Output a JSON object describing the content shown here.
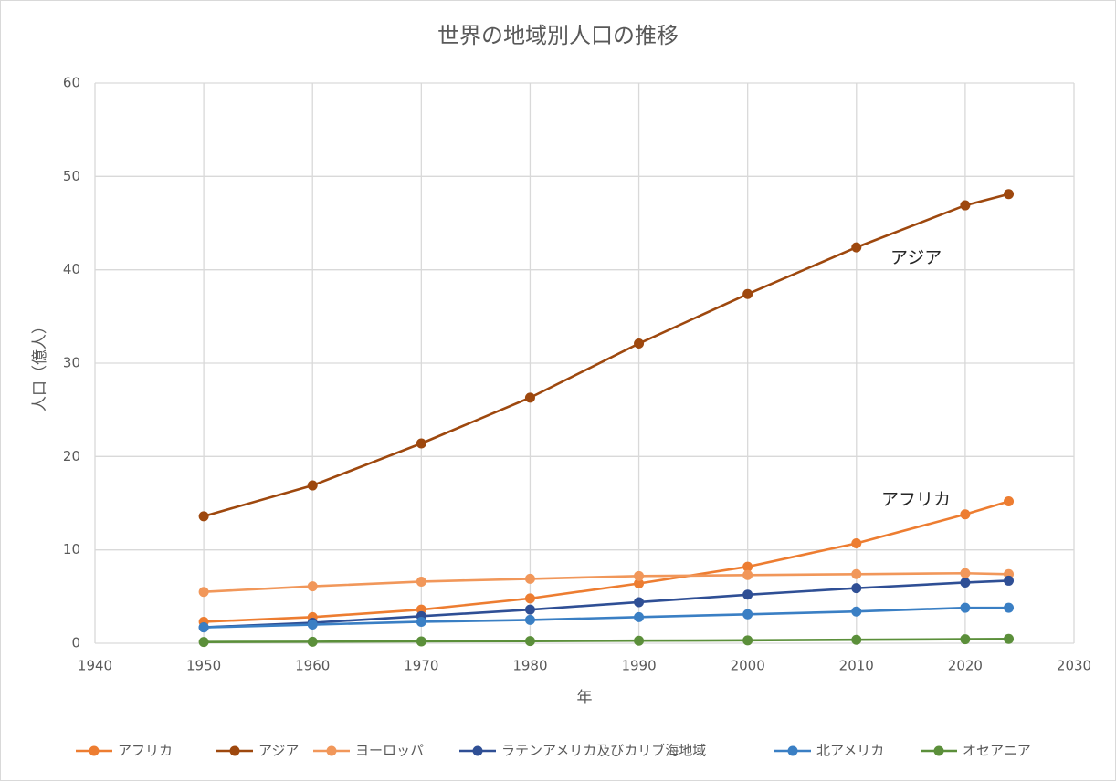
{
  "chart_data": {
    "type": "line",
    "title": "世界の地域別人口の推移",
    "x_label": "年",
    "y_label": "人口（億人）",
    "x": [
      1950,
      1960,
      1970,
      1980,
      1990,
      2000,
      2010,
      2020,
      2024
    ],
    "series": [
      {
        "name": "アフリカ",
        "color": "#ed7d31",
        "values": [
          2.3,
          2.8,
          3.6,
          4.8,
          6.4,
          8.2,
          10.7,
          13.8,
          15.2
        ]
      },
      {
        "name": "アジア",
        "color": "#9e480e",
        "values": [
          13.6,
          16.9,
          21.4,
          26.3,
          32.1,
          37.4,
          42.4,
          46.9,
          48.1
        ]
      },
      {
        "name": "ヨーロッパ",
        "color": "#f1975a",
        "values": [
          5.5,
          6.1,
          6.6,
          6.9,
          7.2,
          7.3,
          7.4,
          7.5,
          7.4
        ]
      },
      {
        "name": "ラテンアメリカ及びカリブ海地域",
        "color": "#2f4f95",
        "values": [
          1.7,
          2.2,
          2.9,
          3.6,
          4.4,
          5.2,
          5.9,
          6.5,
          6.7
        ]
      },
      {
        "name": "北アメリカ",
        "color": "#3a7fc4",
        "values": [
          1.7,
          2.0,
          2.3,
          2.5,
          2.8,
          3.1,
          3.4,
          3.8,
          3.8
        ]
      },
      {
        "name": "オセアニア",
        "color": "#5b8f3a",
        "values": [
          0.13,
          0.16,
          0.2,
          0.23,
          0.27,
          0.31,
          0.37,
          0.43,
          0.46
        ]
      }
    ],
    "annotations": [
      "アジア",
      "アフリカ"
    ],
    "xlim": [
      1940,
      2030
    ],
    "xticks": [
      1940,
      1950,
      1960,
      1970,
      1980,
      1990,
      2000,
      2010,
      2020,
      2030
    ],
    "ylim": [
      0,
      60
    ],
    "yticks": [
      0,
      10,
      20,
      30,
      40,
      50,
      60
    ],
    "grid": true,
    "legend": "bottom"
  }
}
